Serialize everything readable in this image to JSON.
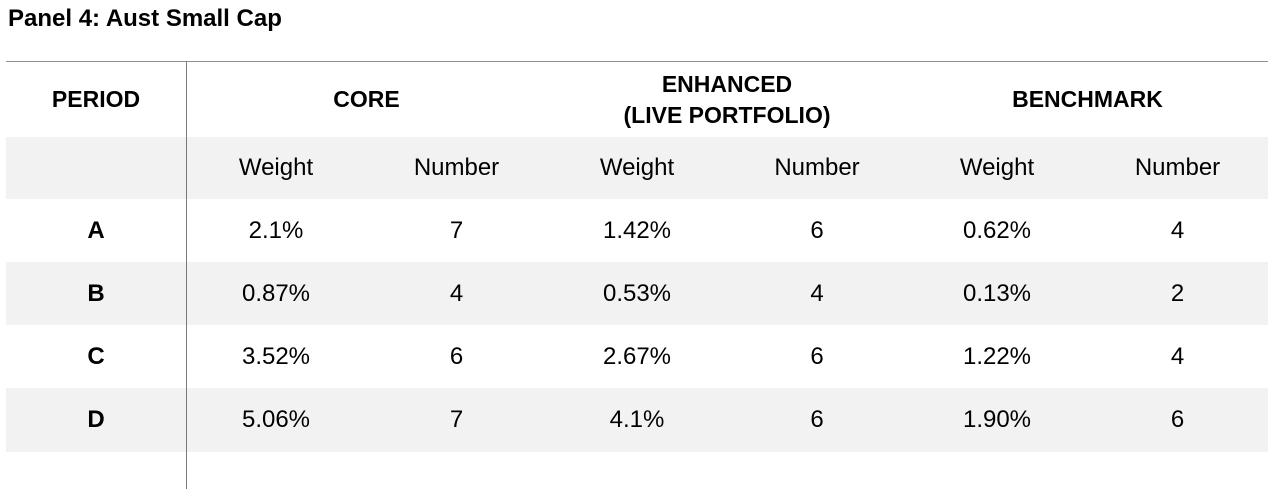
{
  "title": "Panel 4: Aust Small Cap",
  "headers": {
    "period": "PERIOD",
    "core": "CORE",
    "enhanced_line1": "ENHANCED",
    "enhanced_line2": "(LIVE PORTFOLIO)",
    "benchmark": "BENCHMARK"
  },
  "subheaders": [
    "Weight",
    "Number",
    "Weight",
    "Number",
    "Weight",
    "Number"
  ],
  "rows": [
    {
      "period": "A",
      "values": [
        "2.1%",
        "7",
        "1.42%",
        "6",
        "0.62%",
        "4"
      ]
    },
    {
      "period": "B",
      "values": [
        "0.87%",
        "4",
        "0.53%",
        "4",
        "0.13%",
        "2"
      ]
    },
    {
      "period": "C",
      "values": [
        "3.52%",
        "6",
        "2.67%",
        "6",
        "1.22%",
        "4"
      ]
    },
    {
      "period": "D",
      "values": [
        "5.06%",
        "7",
        "4.1%",
        "6",
        "1.90%",
        "6"
      ]
    }
  ],
  "colors": {
    "shaded_row": "#f2f2f2",
    "rule": "#8f8f8f"
  }
}
